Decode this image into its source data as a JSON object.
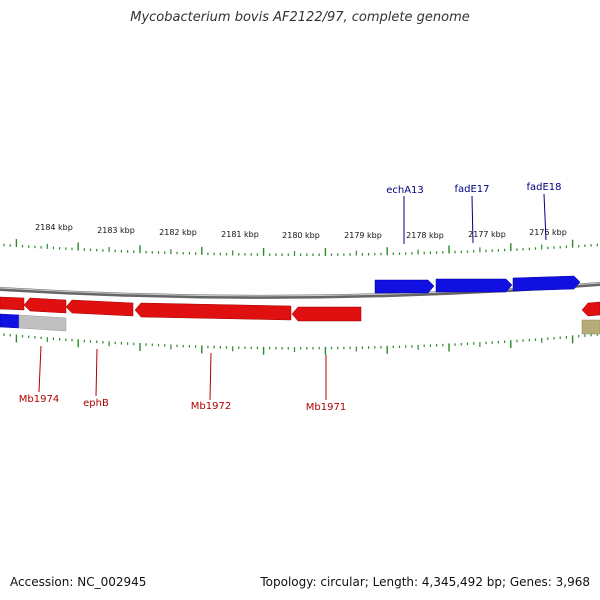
{
  "title": "Mycobacterium bovis AF2122/97, complete genome",
  "footer": {
    "accession": "Accession: NC_002945",
    "summary": "Topology: circular; Length: 4,345,492 bp; Genes: 3,968"
  },
  "colors": {
    "forward_gene": "#1010e0",
    "reverse_gene": "#e01010",
    "forward_label": "#000080",
    "reverse_label": "#b00000",
    "ticks": "#2a8a2a",
    "backbone": "#888888",
    "other_feature": "#c0c0c0",
    "olive_feature": "#b5ad78"
  },
  "scale": {
    "kbp_labels": [
      "2184 kbp",
      "2183 kbp",
      "2182 kbp",
      "2181 kbp",
      "2180 kbp",
      "2179 kbp",
      "2178 kbp",
      "2177 kbp",
      "2176 kbp"
    ]
  },
  "genes": {
    "forward_labels": [
      "echA13",
      "fadE17",
      "fadE18"
    ],
    "reverse_labels": [
      "Mb1974",
      "ephB",
      "Mb1972",
      "Mb1971"
    ]
  }
}
